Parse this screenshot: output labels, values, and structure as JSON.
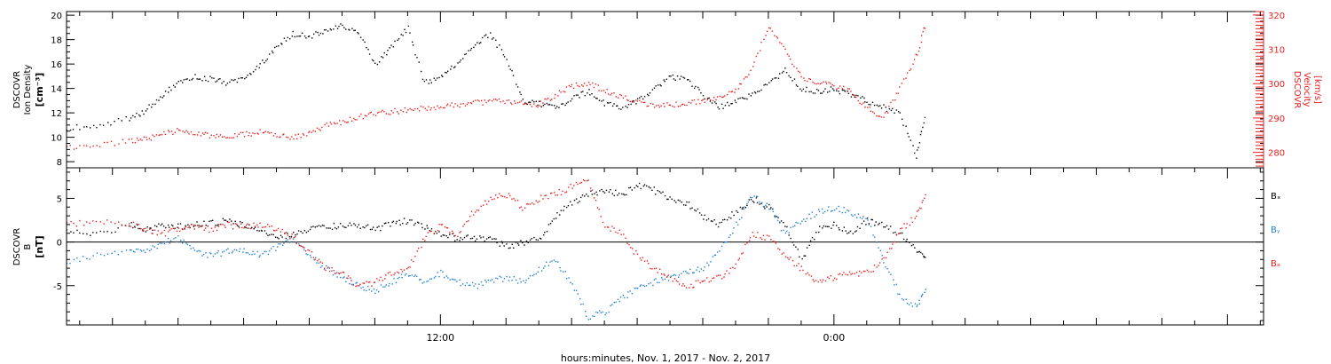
{
  "figure": {
    "xlabel": "hours:minutes, Nov.  1, 2017 - Nov.  2, 2017",
    "x_tick_labels": [
      {
        "hour": 12,
        "label": "12:00"
      },
      {
        "hour": 24,
        "label": "0:00"
      }
    ],
    "xlim_hours": [
      0.6,
      37.1
    ],
    "colors": {
      "black": "#000000",
      "red": "#e8201f",
      "blue": "#1f7fd4",
      "axis_red": "#e8201f"
    }
  },
  "chart_data": [
    {
      "type": "scatter",
      "panel": "top",
      "left_axis": {
        "label_lines": [
          "DSCOVR",
          "Ion Density",
          "[cm⁻³]"
        ],
        "ylim": [
          7.5,
          20.3
        ],
        "ticks": [
          8,
          10,
          12,
          14,
          16,
          18,
          20
        ]
      },
      "right_axis": {
        "label_lines": [
          "DSCOVR",
          "Velocity",
          "[km/s]"
        ],
        "ylim": [
          275.5,
          321
        ],
        "ticks": [
          280,
          290,
          300,
          310,
          320
        ],
        "color": "#e8201f"
      },
      "series": [
        {
          "axis": "left",
          "color": "#000000",
          "x": [
            0.6,
            1.5,
            2.5,
            3.0,
            3.5,
            4.0,
            4.5,
            5.0,
            5.5,
            6.0,
            6.5,
            7.0,
            7.5,
            8.0,
            8.5,
            9.0,
            9.5,
            10.0,
            10.5,
            11.0,
            11.5,
            12.0,
            12.5,
            13.0,
            13.5,
            14.0,
            14.5,
            15.0,
            15.5,
            16.0,
            16.5,
            17.0,
            17.5,
            18.0,
            18.5,
            19.0,
            19.5,
            20.0,
            20.5,
            21.0,
            21.5,
            22.0,
            22.5,
            23.0,
            23.5,
            24.0,
            24.5,
            25.0,
            25.5,
            26.0,
            26.5,
            26.8
          ],
          "y": [
            10.8,
            11.0,
            11.6,
            12.2,
            13.5,
            14.5,
            15.0,
            14.8,
            14.5,
            14.8,
            16.0,
            17.5,
            18.5,
            18.3,
            18.8,
            19.2,
            18.5,
            16.0,
            17.5,
            19.0,
            14.5,
            15.0,
            16.0,
            17.5,
            18.5,
            16.5,
            13.0,
            12.8,
            12.5,
            13.2,
            13.8,
            12.8,
            12.5,
            13.0,
            14.0,
            15.0,
            14.8,
            13.5,
            12.5,
            13.0,
            13.5,
            14.5,
            15.5,
            14.0,
            13.8,
            14.0,
            13.5,
            13.0,
            12.5,
            12.0,
            8.5,
            12.0
          ]
        },
        {
          "axis": "right",
          "color": "#e8201f",
          "x": [
            0.6,
            1.5,
            2.5,
            3.0,
            3.5,
            4.0,
            4.5,
            5.0,
            5.5,
            6.0,
            6.5,
            7.0,
            7.5,
            8.0,
            8.5,
            9.0,
            9.5,
            10.0,
            10.5,
            11.0,
            11.5,
            12.0,
            12.5,
            13.0,
            13.5,
            14.0,
            14.5,
            15.0,
            15.5,
            16.0,
            16.5,
            17.0,
            17.5,
            18.0,
            18.5,
            19.0,
            19.5,
            20.0,
            20.5,
            21.0,
            21.5,
            22.0,
            22.5,
            23.0,
            23.5,
            24.0,
            24.5,
            25.0,
            25.5,
            26.0,
            26.5,
            26.8
          ],
          "y": [
            281.5,
            282.0,
            283.5,
            284.0,
            285.5,
            286.5,
            285.5,
            285.0,
            284.5,
            285.5,
            286.0,
            285.0,
            284.5,
            286.0,
            288.0,
            289.0,
            290.5,
            291.5,
            292.0,
            292.5,
            293.0,
            293.5,
            294.0,
            294.5,
            295.0,
            295.0,
            294.5,
            294.0,
            297.0,
            299.5,
            300.5,
            298.0,
            296.5,
            295.0,
            293.5,
            294.0,
            294.5,
            295.0,
            296.5,
            298.0,
            305.0,
            317.0,
            310.0,
            302.0,
            300.5,
            299.5,
            298.0,
            293.0,
            290.0,
            299.0,
            308.0,
            318.0
          ]
        }
      ]
    },
    {
      "type": "scatter",
      "panel": "bottom",
      "left_axis": {
        "label_lines": [
          "DSCOVR",
          "B",
          "[nT]"
        ],
        "ylim": [
          -9.5,
          8.5
        ],
        "ticks": [
          -5,
          0,
          5
        ]
      },
      "zero_line": true,
      "series": [
        {
          "name": "Bₓ",
          "color": "#000000",
          "x": [
            0.6,
            1.5,
            2.5,
            3.0,
            3.5,
            4.0,
            4.5,
            5.0,
            5.5,
            6.0,
            6.5,
            7.0,
            7.5,
            8.0,
            8.5,
            9.0,
            9.5,
            10.0,
            10.5,
            11.0,
            11.5,
            12.0,
            12.5,
            13.0,
            13.5,
            14.0,
            14.5,
            15.0,
            15.5,
            16.0,
            16.5,
            17.0,
            17.5,
            18.0,
            18.5,
            19.0,
            19.5,
            20.0,
            20.5,
            21.0,
            21.5,
            22.0,
            22.5,
            23.0,
            23.5,
            24.0,
            24.5,
            25.0,
            25.5,
            26.0,
            26.5,
            26.8
          ],
          "y": [
            1.5,
            1.0,
            2.0,
            1.5,
            2.0,
            1.8,
            2.0,
            2.2,
            2.5,
            2.0,
            1.5,
            0.5,
            1.0,
            1.5,
            1.8,
            2.0,
            2.0,
            1.5,
            2.2,
            2.5,
            1.8,
            1.0,
            0.5,
            0.5,
            0.5,
            -0.5,
            0.0,
            0.5,
            3.0,
            4.5,
            5.5,
            6.0,
            5.5,
            6.5,
            6.0,
            5.0,
            4.5,
            3.0,
            2.0,
            3.5,
            5.0,
            4.0,
            2.0,
            -2.0,
            1.5,
            2.0,
            1.0,
            2.5,
            2.0,
            1.0,
            -1.0,
            -1.5
          ]
        },
        {
          "name": "Bᵧ",
          "color": "#1f7fd4",
          "x": [
            0.6,
            1.5,
            2.5,
            3.0,
            3.5,
            4.0,
            4.5,
            5.0,
            5.5,
            6.0,
            6.5,
            7.0,
            7.5,
            8.0,
            8.5,
            9.0,
            9.5,
            10.0,
            10.5,
            11.0,
            11.5,
            12.0,
            12.5,
            13.0,
            13.5,
            14.0,
            14.5,
            15.0,
            15.5,
            16.0,
            16.5,
            17.0,
            17.5,
            18.0,
            18.5,
            19.0,
            19.5,
            20.0,
            20.5,
            21.0,
            21.5,
            22.0,
            22.5,
            23.0,
            23.5,
            24.0,
            24.5,
            25.0,
            25.5,
            26.0,
            26.5,
            26.8
          ],
          "y": [
            -2.2,
            -1.5,
            -1.0,
            -1.0,
            0.0,
            0.5,
            -1.0,
            -1.5,
            -1.0,
            -1.0,
            -1.5,
            -0.5,
            0.5,
            -1.5,
            -3.0,
            -4.0,
            -5.0,
            -5.5,
            -4.5,
            -3.5,
            -4.5,
            -3.5,
            -4.5,
            -5.0,
            -4.5,
            -4.0,
            -4.5,
            -3.0,
            -2.0,
            -5.0,
            -8.5,
            -8.0,
            -6.5,
            -5.0,
            -4.5,
            -4.0,
            -3.5,
            -3.0,
            -1.0,
            2.0,
            5.5,
            4.0,
            1.0,
            2.5,
            3.5,
            4.0,
            3.5,
            2.5,
            -2.0,
            -6.0,
            -7.5,
            -5.0
          ]
        },
        {
          "name": "Bₔ",
          "color": "#e8201f",
          "x": [
            0.6,
            1.5,
            2.5,
            3.0,
            3.5,
            4.0,
            4.5,
            5.0,
            5.5,
            6.0,
            6.5,
            7.0,
            7.5,
            8.0,
            8.5,
            9.0,
            9.5,
            10.0,
            10.5,
            11.0,
            11.5,
            12.0,
            12.5,
            13.0,
            13.5,
            14.0,
            14.5,
            15.0,
            15.5,
            16.0,
            16.5,
            17.0,
            17.5,
            18.0,
            18.5,
            19.0,
            19.5,
            20.0,
            20.5,
            21.0,
            21.5,
            22.0,
            22.5,
            23.0,
            23.5,
            24.0,
            24.5,
            25.0,
            25.5,
            26.0,
            26.5,
            26.8
          ],
          "y": [
            2.0,
            2.5,
            2.2,
            1.5,
            1.0,
            1.5,
            1.8,
            1.5,
            2.0,
            1.8,
            2.0,
            1.5,
            0.5,
            -1.0,
            -3.0,
            -3.5,
            -5.0,
            -4.5,
            -3.5,
            -3.0,
            0.5,
            2.0,
            1.0,
            3.5,
            5.0,
            5.5,
            4.0,
            5.0,
            5.5,
            6.5,
            7.0,
            2.0,
            1.0,
            -1.5,
            -3.0,
            -4.0,
            -5.0,
            -4.5,
            -4.0,
            -2.5,
            1.0,
            0.5,
            -1.5,
            -3.0,
            -4.5,
            -4.0,
            -3.5,
            -3.5,
            -2.0,
            1.5,
            3.0,
            5.5
          ]
        }
      ]
    }
  ]
}
